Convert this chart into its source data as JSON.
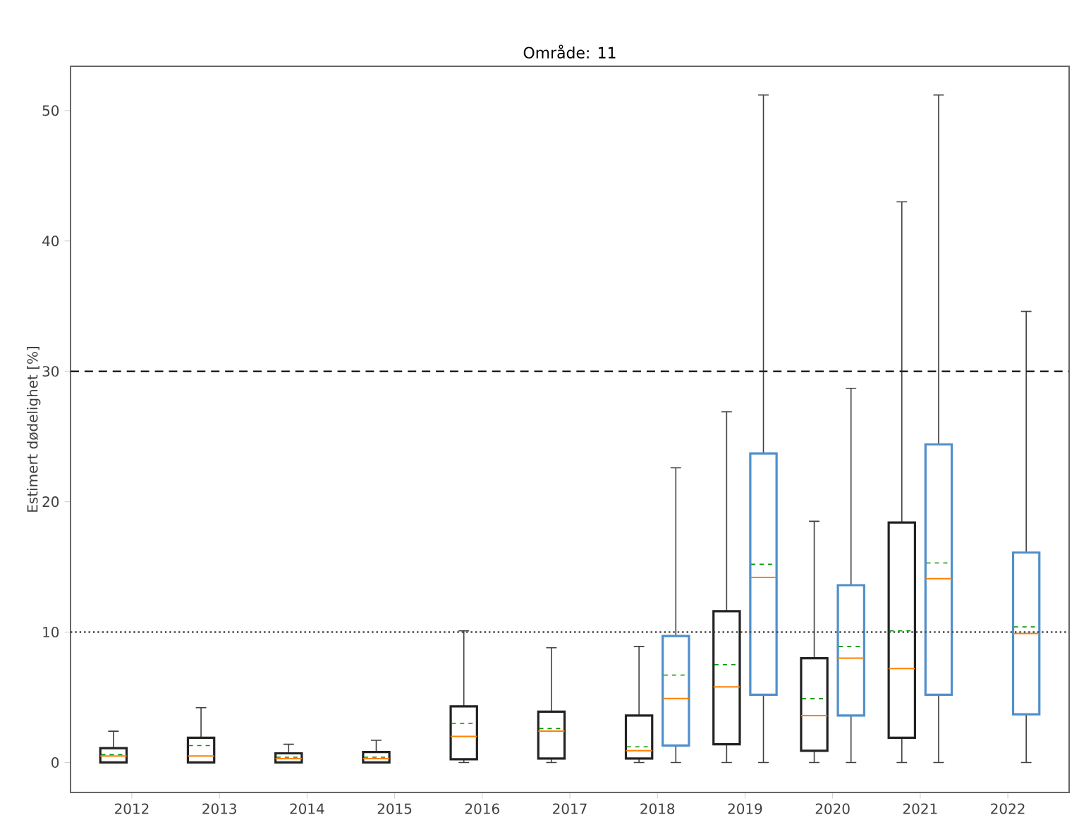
{
  "chart_data": {
    "type": "box",
    "title": "Område: 11",
    "ylabel": "Estimert dødelighet [%]",
    "categories": [
      "2012",
      "2013",
      "2014",
      "2015",
      "2016",
      "2017",
      "2018",
      "2019",
      "2020",
      "2021",
      "2022"
    ],
    "series": [
      {
        "color": "#222222",
        "boxes": [
          {
            "low": 0,
            "q1": 0,
            "median": 0.5,
            "q3": 1.1,
            "high": 2.4,
            "mean": 0.6
          },
          {
            "low": 0,
            "q1": 0,
            "median": 0.5,
            "q3": 1.9,
            "high": 4.2,
            "mean": 1.3
          },
          {
            "low": 0,
            "q1": 0,
            "median": 0.3,
            "q3": 0.7,
            "high": 1.4,
            "mean": 0.4
          },
          {
            "low": 0,
            "q1": 0,
            "median": 0.3,
            "q3": 0.8,
            "high": 1.7,
            "mean": 0.4
          },
          {
            "low": 0,
            "q1": 0.25,
            "median": 2.0,
            "q3": 4.3,
            "high": 10.1,
            "mean": 3.0
          },
          {
            "low": 0,
            "q1": 0.3,
            "median": 2.4,
            "q3": 3.9,
            "high": 8.8,
            "mean": 2.6
          },
          {
            "low": 0,
            "q1": 0.3,
            "median": 0.9,
            "q3": 3.6,
            "high": 8.9,
            "mean": 1.2
          },
          {
            "low": 0,
            "q1": 1.4,
            "median": 5.8,
            "q3": 11.6,
            "high": 26.9,
            "mean": 7.5
          },
          {
            "low": 0,
            "q1": 0.9,
            "median": 3.6,
            "q3": 8.0,
            "high": 18.5,
            "mean": 4.9
          },
          {
            "low": 0,
            "q1": 1.9,
            "median": 7.2,
            "q3": 18.4,
            "high": 43.0,
            "mean": 10.1
          },
          null
        ]
      },
      {
        "color": "#4f8fcc",
        "boxes": [
          null,
          null,
          null,
          null,
          null,
          null,
          {
            "low": 0,
            "q1": 1.3,
            "median": 4.9,
            "q3": 9.7,
            "high": 22.6,
            "mean": 6.7
          },
          {
            "low": 0,
            "q1": 5.2,
            "median": 14.2,
            "q3": 23.7,
            "high": 51.2,
            "mean": 15.2
          },
          {
            "low": 0,
            "q1": 3.6,
            "median": 8.0,
            "q3": 13.6,
            "high": 28.7,
            "mean": 8.9
          },
          {
            "low": 0,
            "q1": 5.2,
            "median": 14.1,
            "q3": 24.4,
            "high": 51.2,
            "mean": 15.3
          },
          {
            "low": 0,
            "q1": 3.7,
            "median": 9.9,
            "q3": 16.1,
            "high": 34.6,
            "mean": 10.4
          }
        ]
      }
    ],
    "ylim": [
      -2.3,
      53.4
    ],
    "yticks": [
      0,
      10,
      20,
      30,
      40,
      50
    ],
    "ref_lines": [
      {
        "axis": "y",
        "value": 30,
        "color": "#222222",
        "line_style": "dashed"
      },
      {
        "axis": "y",
        "value": 10,
        "color": "#444444",
        "line_style": "dotted"
      }
    ]
  }
}
